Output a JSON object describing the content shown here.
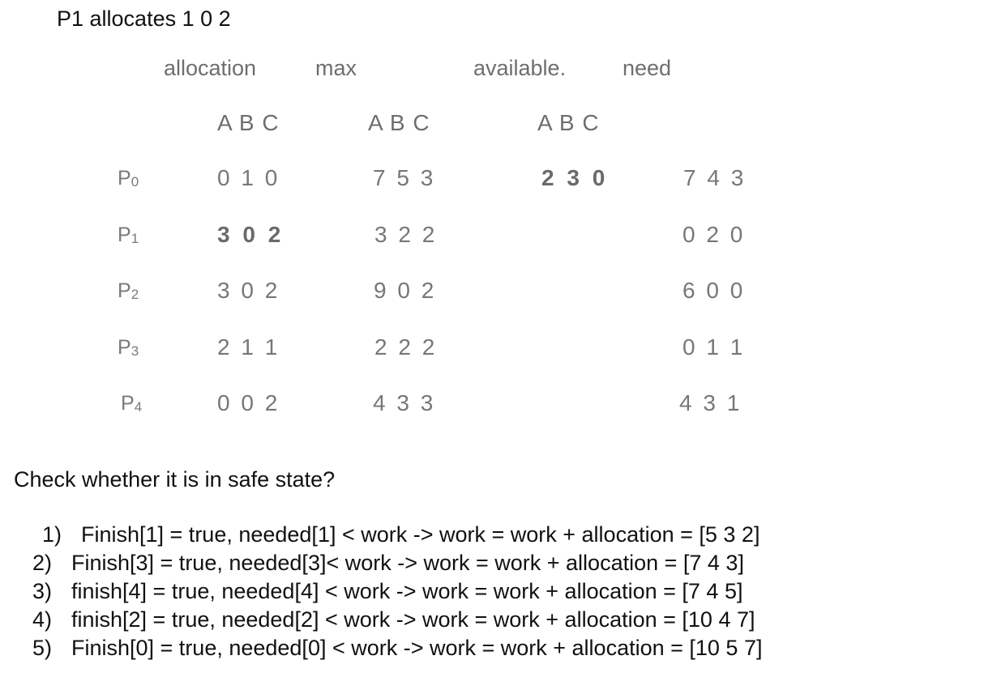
{
  "title": "P1 allocates 1 0 2",
  "headers": {
    "allocation": "allocation",
    "max": "max",
    "available": "available.",
    "need": "need"
  },
  "resources": {
    "allocation": "A B C",
    "max": "A B C",
    "available": "A B C"
  },
  "rows": [
    {
      "process": "P",
      "index": "0",
      "allocation": "0 1 0",
      "max": "7 5 3",
      "available": "2 3 0",
      "need": "7 4 3"
    },
    {
      "process": "P",
      "index": "1",
      "allocation": "3 0 2",
      "max": "3 2 2",
      "available": "",
      "need": "0 2 0"
    },
    {
      "process": "P",
      "index": "2",
      "allocation": "3 0 2",
      "max": "9 0 2",
      "available": "",
      "need": "6 0 0"
    },
    {
      "process": "P",
      "index": "3",
      "allocation": "2 1 1",
      "max": "2 2 2",
      "available": "",
      "need": "0 1 1"
    },
    {
      "process": "P",
      "index": "4",
      "allocation": "0 0 2",
      "max": "4 3 3",
      "available": "",
      "need": "4 3 1"
    }
  ],
  "question": "Check whether it is in safe state?",
  "steps": [
    {
      "num": "1)",
      "text": "Finish[1] = true, needed[1] < work -> work = work + allocation = [5 3 2]"
    },
    {
      "num": "2)",
      "text": "Finish[3] = true,  needed[3]< work -> work = work + allocation = [7 4 3]"
    },
    {
      "num": "3)",
      "text": "finish[4] = true, needed[4] < work -> work = work + allocation = [7 4 5]"
    },
    {
      "num": "4)",
      "text": "finish[2] = true, needed[2] < work -> work = work + allocation = [10 4 7]"
    },
    {
      "num": "5)",
      "text": "Finish[0] = true, needed[0] < work -> work = work + allocation = [10 5 7]"
    }
  ]
}
